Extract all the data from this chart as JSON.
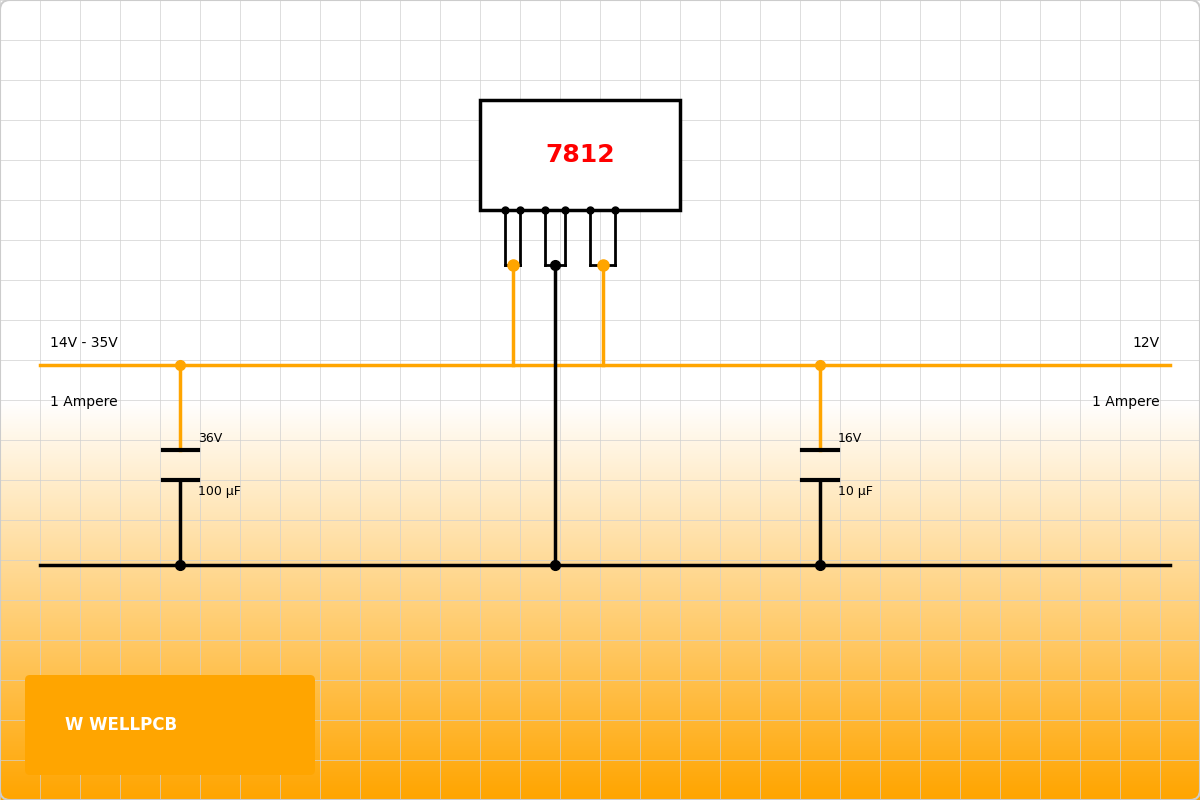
{
  "bg_top_color": "#ffffff",
  "bg_bottom_color": "#FFA500",
  "grid_color": "#d0d0d0",
  "orange_wire": "#FFA500",
  "black_wire": "#000000",
  "ic_box_color": "#000000",
  "ic_label": "7812",
  "ic_label_color": "#ff0000",
  "left_labels": [
    "14V - 35V",
    "1 Ampere"
  ],
  "left_cap_labels": [
    "36V",
    "100 μF"
  ],
  "right_cap_labels": [
    "16V",
    "10 μF"
  ],
  "right_labels": [
    "12V",
    "1 Ampere"
  ],
  "wellpcb_text": "W WELLPCB",
  "wellpcb_color": "#ffffff",
  "wire_lw": 2.5,
  "orange_lw": 2.5
}
